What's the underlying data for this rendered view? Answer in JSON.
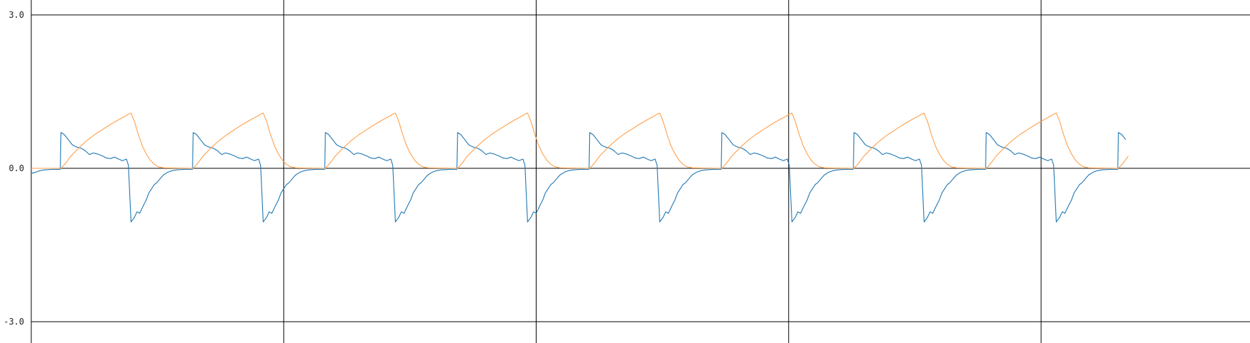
{
  "chart_data": {
    "type": "line",
    "title": "",
    "xlabel": "",
    "ylabel": "",
    "ylim": [
      -3.0,
      3.0
    ],
    "xlim": [
      0,
      8.3
    ],
    "grid": {
      "vertical": true,
      "zero_line": true
    },
    "y_ticks": [
      "3.0",
      "0.0",
      "-3.0"
    ],
    "y_tick_values": [
      3.0,
      0.0,
      -3.0
    ],
    "x_gridlines": [
      1.91,
      3.82,
      5.73,
      7.64
    ],
    "period": 1.0,
    "series": [
      {
        "color": "#1f77b4",
        "points": [
          [
            0.0,
            -0.1
          ],
          [
            0.03,
            -0.08
          ],
          [
            0.06,
            -0.05
          ],
          [
            0.1,
            -0.03
          ],
          [
            0.16,
            -0.02
          ],
          [
            0.22,
            -0.02
          ],
          [
            0.225,
            0.7
          ],
          [
            0.25,
            0.66
          ],
          [
            0.28,
            0.56
          ],
          [
            0.31,
            0.46
          ],
          [
            0.34,
            0.42
          ],
          [
            0.38,
            0.39
          ],
          [
            0.41,
            0.34
          ],
          [
            0.44,
            0.27
          ],
          [
            0.47,
            0.3
          ],
          [
            0.5,
            0.28
          ],
          [
            0.54,
            0.24
          ],
          [
            0.57,
            0.2
          ],
          [
            0.6,
            0.19
          ],
          [
            0.63,
            0.22
          ],
          [
            0.66,
            0.18
          ],
          [
            0.69,
            0.15
          ],
          [
            0.72,
            0.18
          ],
          [
            0.735,
            0.06
          ],
          [
            0.755,
            -1.05
          ],
          [
            0.78,
            -0.96
          ],
          [
            0.8,
            -0.85
          ],
          [
            0.82,
            -0.88
          ],
          [
            0.85,
            -0.72
          ],
          [
            0.87,
            -0.62
          ],
          [
            0.89,
            -0.48
          ],
          [
            0.91,
            -0.4
          ],
          [
            0.93,
            -0.32
          ],
          [
            0.95,
            -0.28
          ],
          [
            0.97,
            -0.22
          ],
          [
            0.99,
            -0.16
          ],
          [
            1.0,
            -0.13
          ]
        ]
      },
      {
        "color": "#ff9f4a",
        "points": [
          [
            0.0,
            0.0
          ],
          [
            0.225,
            0.0
          ],
          [
            0.26,
            0.1
          ],
          [
            0.3,
            0.24
          ],
          [
            0.36,
            0.4
          ],
          [
            0.42,
            0.54
          ],
          [
            0.48,
            0.66
          ],
          [
            0.54,
            0.76
          ],
          [
            0.6,
            0.86
          ],
          [
            0.66,
            0.95
          ],
          [
            0.71,
            1.02
          ],
          [
            0.735,
            1.06
          ],
          [
            0.755,
            1.08
          ],
          [
            0.78,
            0.92
          ],
          [
            0.81,
            0.66
          ],
          [
            0.84,
            0.44
          ],
          [
            0.87,
            0.28
          ],
          [
            0.9,
            0.16
          ],
          [
            0.93,
            0.08
          ],
          [
            0.96,
            0.03
          ],
          [
            1.0,
            0.01
          ]
        ]
      }
    ]
  }
}
